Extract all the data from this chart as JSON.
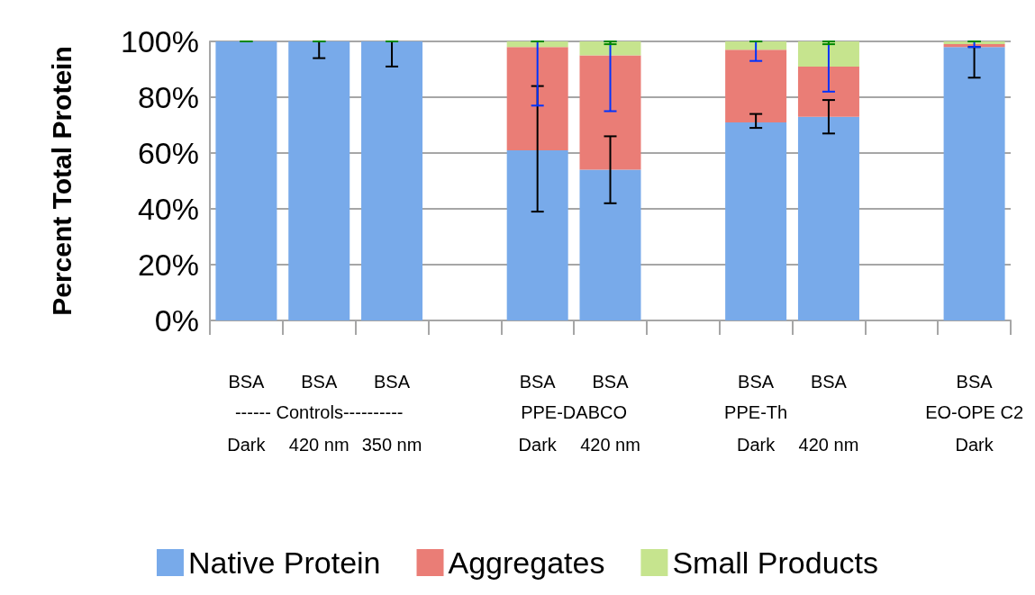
{
  "chart_data": {
    "type": "bar",
    "stacked": true,
    "ylabel": "Percent Total Protein",
    "categories": [
      "BSA\nDark",
      "BSA\n420 nm",
      "BSA\n350 nm",
      null,
      "BSA\nDark",
      "BSA\n420 nm",
      null,
      "BSA\nDark",
      "BSA\n420 nm",
      null,
      "BSA\nDark"
    ],
    "annotations": [
      "------ Controls----------",
      "PPE-DABCO",
      "PPE-Th",
      "EO-OPE C2"
    ],
    "series": [
      {
        "name": "Native Protein",
        "color": "#78aaea",
        "values": [
          100,
          100,
          100,
          null,
          61,
          54,
          null,
          71,
          73,
          null,
          98
        ],
        "errors": [
          null,
          [
            94,
            100
          ],
          [
            91,
            100
          ],
          null,
          [
            39,
            84
          ],
          [
            42,
            66
          ],
          null,
          [
            69,
            74
          ],
          [
            67,
            79
          ],
          null,
          [
            87,
            98
          ]
        ]
      },
      {
        "name": "Aggregates",
        "color": "#ea7d76",
        "values": [
          0,
          0,
          0,
          null,
          37,
          41,
          null,
          26,
          18,
          null,
          1
        ],
        "errors": [
          null,
          null,
          null,
          null,
          [
            77,
            100
          ],
          [
            75,
            100
          ],
          null,
          [
            93,
            100
          ],
          [
            82,
            100
          ],
          null,
          [
            98,
            100
          ]
        ]
      },
      {
        "name": "Small Products",
        "color": "#c6e48e",
        "values": [
          0,
          0,
          0,
          null,
          2,
          5,
          null,
          3,
          9,
          null,
          1
        ],
        "errors": [
          [
            100,
            100
          ],
          [
            100,
            100
          ],
          [
            100,
            100
          ],
          null,
          [
            100,
            100
          ],
          [
            99,
            100
          ],
          null,
          [
            100,
            100
          ],
          [
            99,
            100
          ],
          null,
          [
            100,
            100
          ]
        ]
      }
    ],
    "ylim": [
      0,
      100
    ],
    "yticks": [
      {
        "value": 0,
        "label": "0%"
      },
      {
        "value": 20,
        "label": "20%"
      },
      {
        "value": 40,
        "label": "40%"
      },
      {
        "value": 60,
        "label": "60%"
      },
      {
        "value": 80,
        "label": "80%"
      },
      {
        "value": 100,
        "label": "100%"
      }
    ],
    "grid": "y",
    "legend": "bottom"
  }
}
